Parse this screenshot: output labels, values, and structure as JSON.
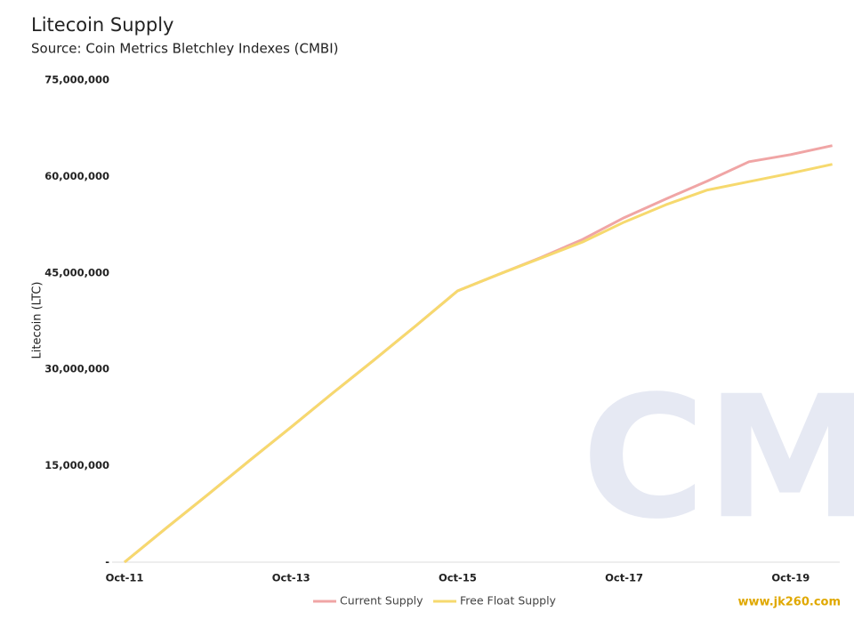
{
  "chart_data": {
    "type": "line",
    "title": "Litecoin Supply",
    "subtitle": "Source: Coin Metrics Bletchley Indexes (CMBI)",
    "y_label": "Litecoin (LTC)",
    "categories": [
      "Oct-11",
      null,
      null,
      null,
      "Oct-13",
      null,
      null,
      null,
      "Oct-15",
      null,
      null,
      null,
      "Oct-17",
      null,
      null,
      null,
      "Oct-19",
      null
    ],
    "series": [
      {
        "name": "Current Supply",
        "color": "#f0a5a5",
        "values": [
          0,
          5300000,
          10500000,
          15800000,
          21000000,
          26300000,
          31500000,
          36800000,
          42200000,
          44800000,
          47400000,
          50200000,
          53600000,
          56500000,
          59300000,
          62300000,
          63400000,
          64800000
        ]
      },
      {
        "name": "Free Float Supply",
        "color": "#f6d96e",
        "values": [
          0,
          5300000,
          10500000,
          15800000,
          21000000,
          26300000,
          31500000,
          36800000,
          42200000,
          44800000,
          47300000,
          49800000,
          52900000,
          55600000,
          57900000,
          59200000,
          60500000,
          61900000
        ]
      }
    ],
    "ylim": [
      0,
      75000000
    ],
    "yticks": [
      {
        "value": 0,
        "label": "-"
      },
      {
        "value": 15000000,
        "label": "15,000,000"
      },
      {
        "value": 30000000,
        "label": "30,000,000"
      },
      {
        "value": 45000000,
        "label": "45,000,000"
      },
      {
        "value": 60000000,
        "label": "60,000,000"
      },
      {
        "value": 75000000,
        "label": "75,000,000"
      }
    ],
    "grid": false,
    "legend": "bottom",
    "logo": "CM",
    "watermark": "www.jk260.com"
  }
}
